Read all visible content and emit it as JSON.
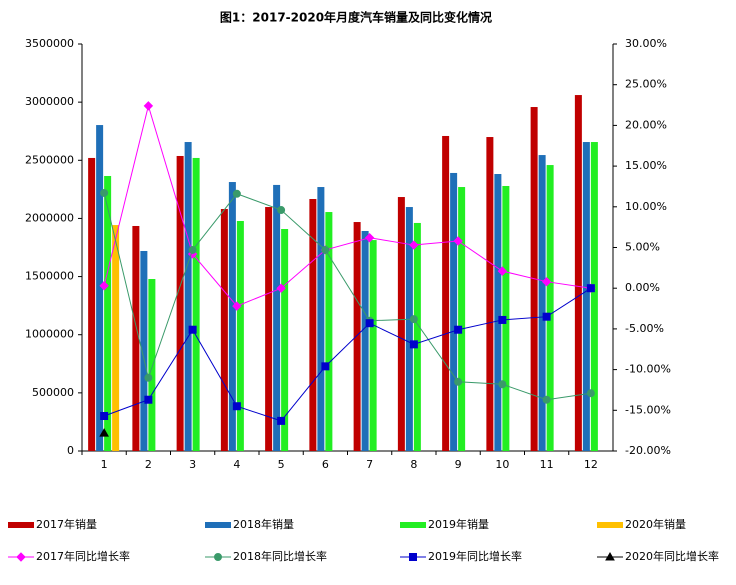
{
  "chart_data": {
    "type": "bar",
    "title": "图1：2017-2020年月度汽车销量及同比变化情况",
    "categories": [
      "1",
      "2",
      "3",
      "4",
      "5",
      "6",
      "7",
      "8",
      "9",
      "10",
      "11",
      "12"
    ],
    "ylim": [
      0,
      3500000
    ],
    "yticks": [
      0,
      500000,
      1000000,
      1500000,
      2000000,
      2500000,
      3000000,
      3500000
    ],
    "y2lim": [
      -20,
      30
    ],
    "y2ticks": [
      {
        "value": -20,
        "label": "-20.00%"
      },
      {
        "value": -15,
        "label": "-15.00%"
      },
      {
        "value": -10,
        "label": "-10.00%"
      },
      {
        "value": -5,
        "label": "-5.00%"
      },
      {
        "value": 0,
        "label": "0.00%"
      },
      {
        "value": 5,
        "label": "5.00%"
      },
      {
        "value": 10,
        "label": "10.00%"
      },
      {
        "value": 15,
        "label": "15.00%"
      },
      {
        "value": 20,
        "label": "20.00%"
      },
      {
        "value": 25,
        "label": "25.00%"
      },
      {
        "value": 30,
        "label": "30.00%"
      }
    ],
    "series": [
      {
        "name": "2017年销量",
        "color": "#c00000",
        "values": [
          2520000,
          1935000,
          2537000,
          2081000,
          2098000,
          2167000,
          1969000,
          2184000,
          2709000,
          2700000,
          2958000,
          3061000
        ]
      },
      {
        "name": "2018年销量",
        "color": "#1f6fb8",
        "values": [
          2803000,
          1720000,
          2657000,
          2313000,
          2288000,
          2270000,
          1892000,
          2098000,
          2391000,
          2382000,
          2545000,
          2657000
        ]
      },
      {
        "name": "2019年销量",
        "color": "#22ee22",
        "values": [
          2365000,
          1479000,
          2520000,
          1978000,
          1909000,
          2055000,
          1814000,
          1961000,
          2270000,
          2279000,
          2459000,
          2657000
        ]
      },
      {
        "name": "2020年销量",
        "color": "#ffc000",
        "values": [
          1943000,
          null,
          null,
          null,
          null,
          null,
          null,
          null,
          null,
          null,
          null,
          null
        ]
      },
      {
        "name": "2017年同比增长率",
        "type": "line",
        "axis": "y2",
        "marker": "diamond",
        "color": "#ff00ff",
        "values": [
          0.3,
          22.4,
          4.2,
          -2.2,
          0.0,
          4.7,
          6.2,
          5.3,
          5.8,
          2.1,
          0.8,
          0.0
        ]
      },
      {
        "name": "2018年同比增长率",
        "type": "line",
        "axis": "y2",
        "marker": "circle",
        "color": "#3a9a6a",
        "values": [
          11.7,
          -11.0,
          4.7,
          11.6,
          9.6,
          4.7,
          -4.0,
          -3.8,
          -11.5,
          -11.8,
          -13.7,
          -12.9
        ]
      },
      {
        "name": "2019年同比增长率",
        "type": "line",
        "axis": "y2",
        "marker": "square",
        "color": "#0000cc",
        "values": [
          -15.7,
          -13.7,
          -5.1,
          -14.5,
          -16.3,
          -9.6,
          -4.3,
          -6.9,
          -5.1,
          -3.9,
          -3.5,
          0.0
        ]
      },
      {
        "name": "2020年同比增长率",
        "type": "line",
        "axis": "y2",
        "marker": "triangle",
        "color": "#000000",
        "values": [
          -17.8,
          null,
          null,
          null,
          null,
          null,
          null,
          null,
          null,
          null,
          null,
          null
        ]
      }
    ]
  }
}
